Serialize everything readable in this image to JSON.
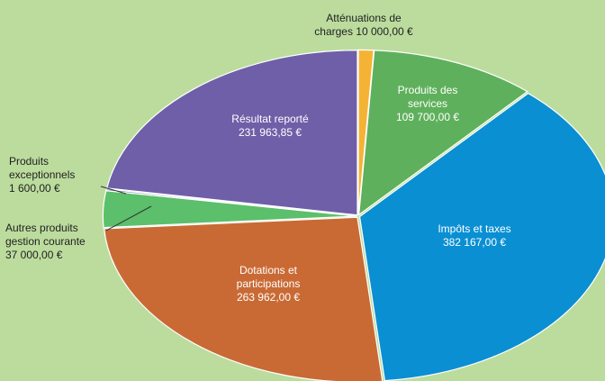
{
  "chart_data": {
    "type": "pie",
    "title": "",
    "legend": "none",
    "slices": [
      {
        "name_lines": [
          "Atténuations de",
          "charges 10 000,00 €"
        ],
        "value": 10000.0,
        "color": "#f5b335"
      },
      {
        "name_lines": [
          "Produits des",
          "services",
          "109 700,00 €"
        ],
        "value": 109700.0,
        "color": "#5fb05c"
      },
      {
        "name_lines": [
          "Impôts et taxes",
          "382 167,00 €"
        ],
        "value": 382167.0,
        "color": "#0a8fd3"
      },
      {
        "name_lines": [
          "Dotations et",
          "participations",
          "263 962,00 €"
        ],
        "value": 263962.0,
        "color": "#c96a35"
      },
      {
        "name_lines": [
          "Autres produits",
          "gestion courante",
          "37 000,00 €"
        ],
        "value": 37000.0,
        "color": "#5cbf6b"
      },
      {
        "name_lines": [
          "Produits",
          "exceptionnels",
          "1 600,00 €"
        ],
        "value": 1600.0,
        "color": "#3a5fa0"
      },
      {
        "name_lines": [
          "Résultat reporté",
          "231 963,85 €"
        ],
        "value": 231963.85,
        "color": "#6f5fa8"
      }
    ]
  }
}
